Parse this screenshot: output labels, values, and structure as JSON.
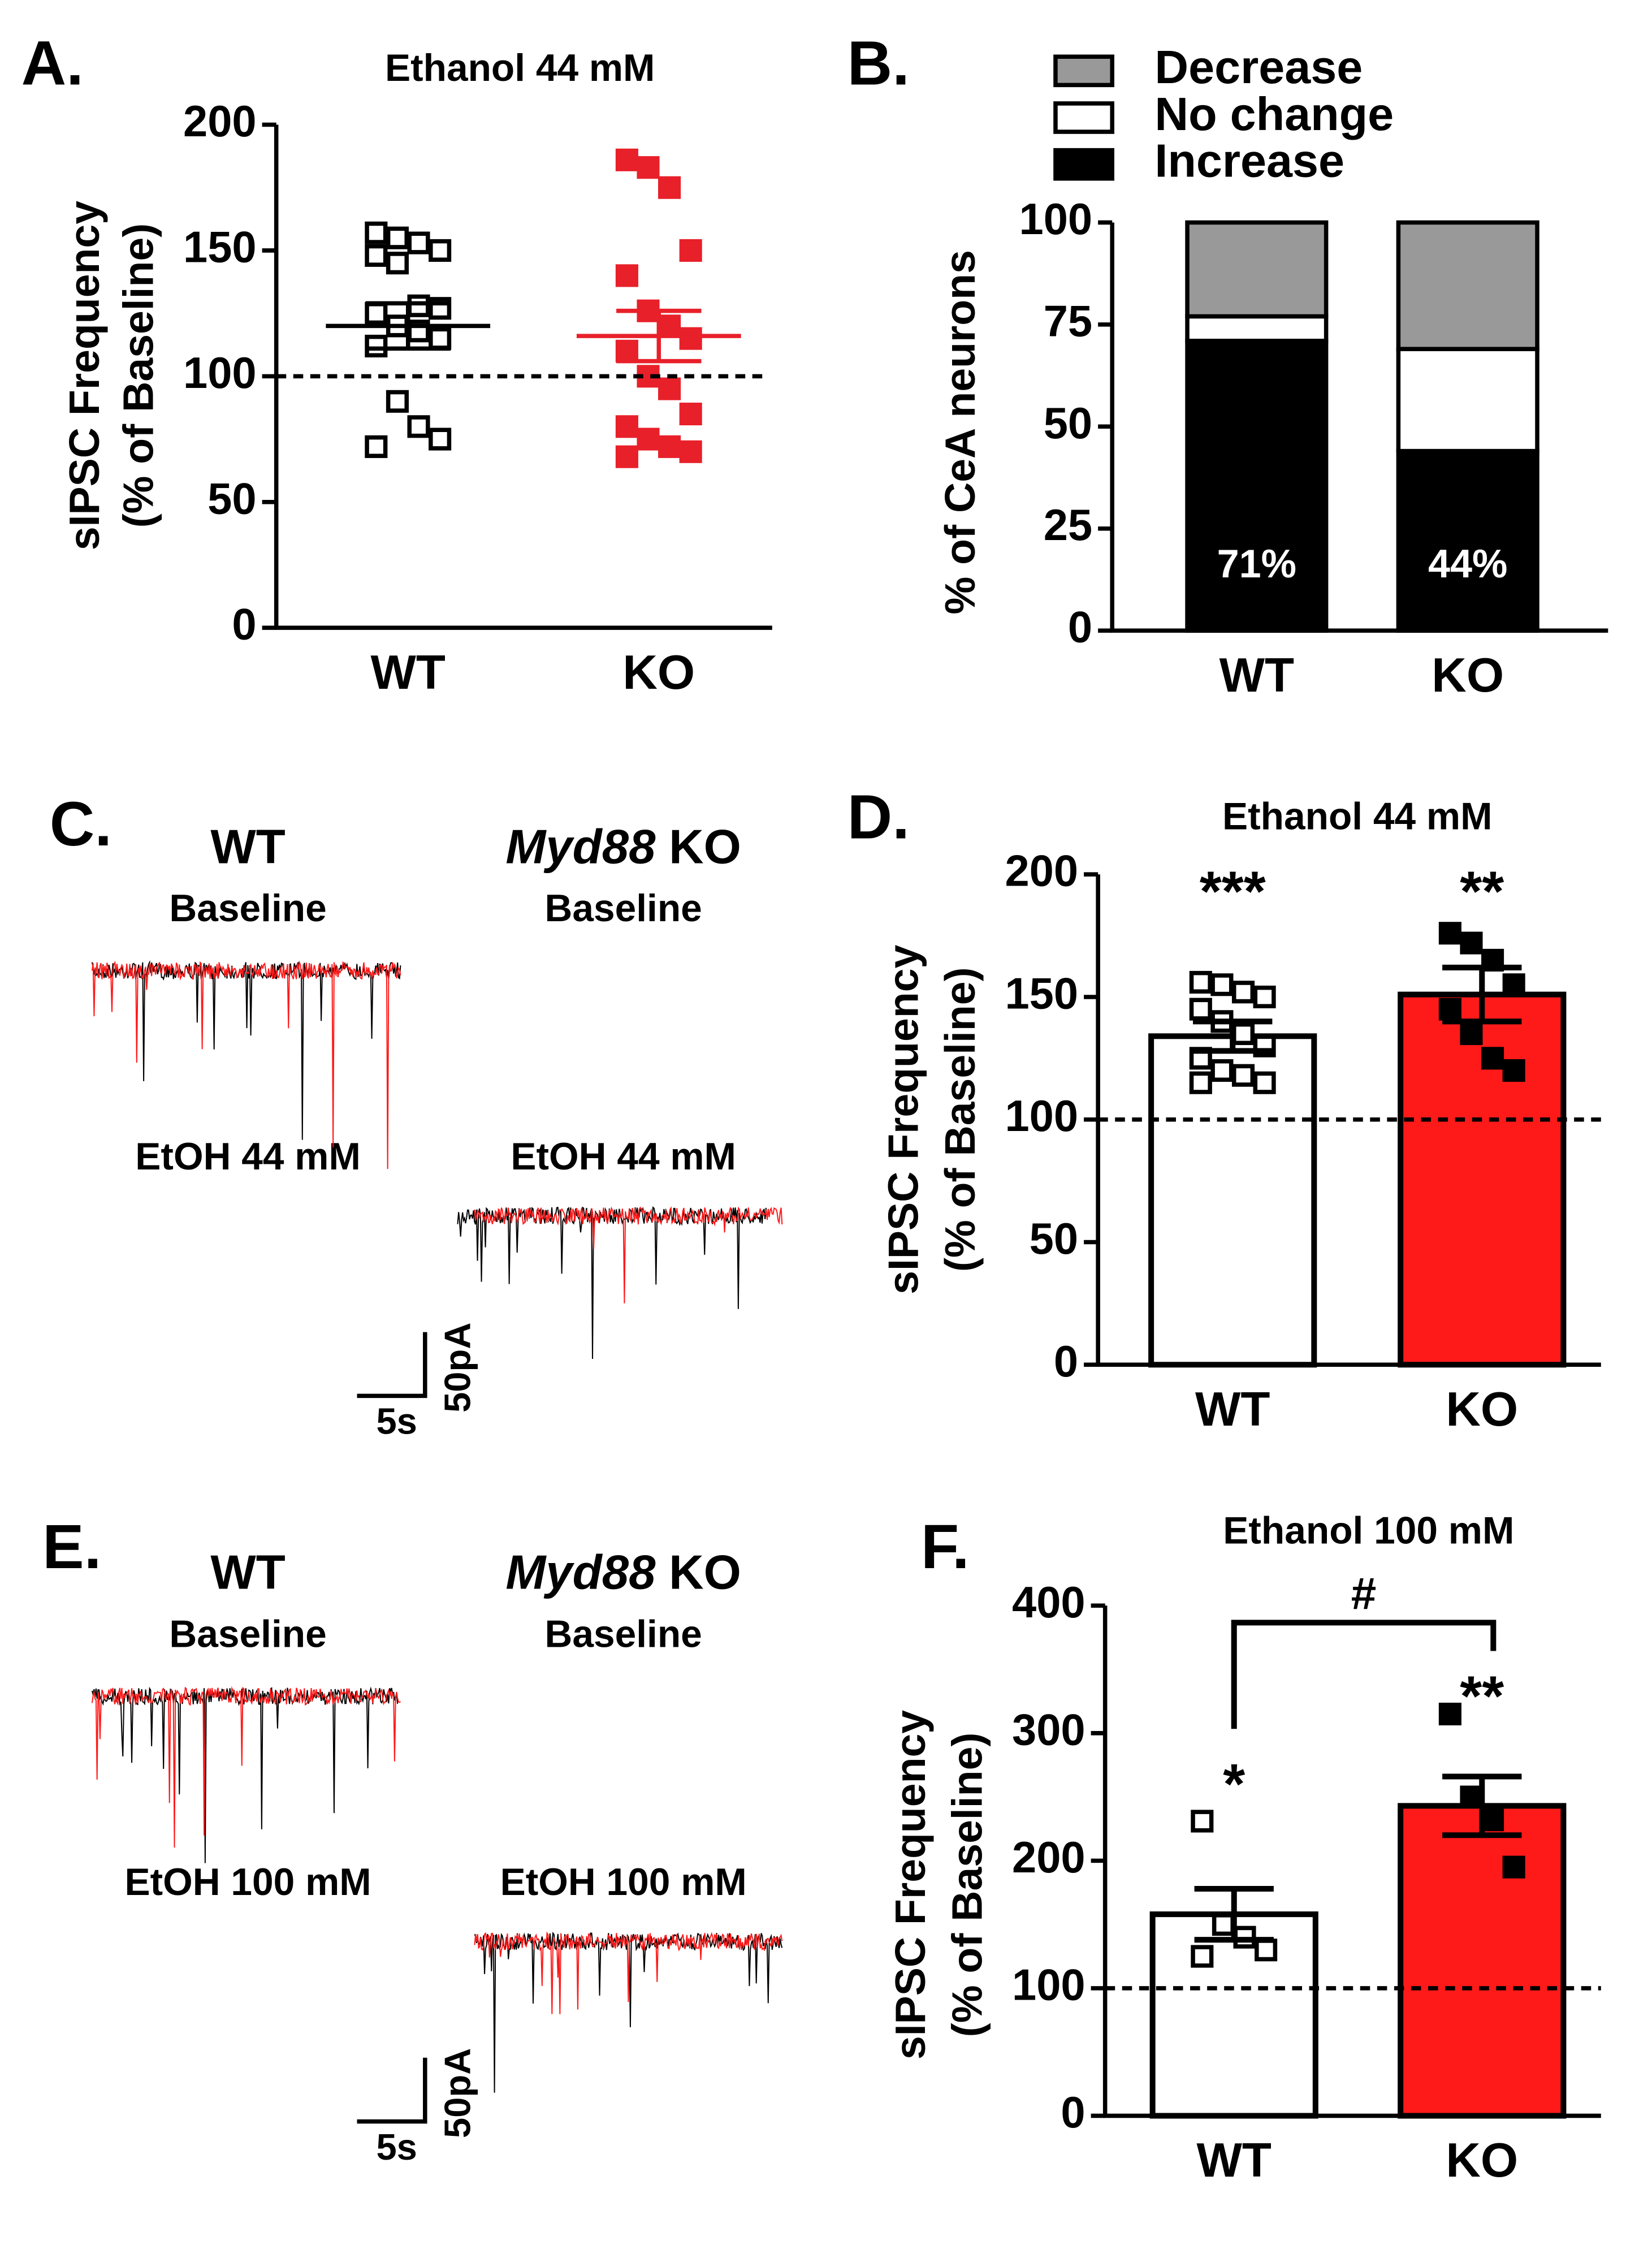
{
  "trace_panels": [
    {
      "panel": "C.",
      "groups": [
        {
          "title": "WT",
          "color": "#000000",
          "conditions": [
            "Baseline",
            "EtOH 44 mM"
          ]
        },
        {
          "title_italic": "Myd88",
          "title": "KO",
          "color": "#ff1a1a",
          "conditions": [
            "Baseline",
            "EtOH 44 mM"
          ]
        }
      ],
      "scale_time": "5s",
      "scale_current": "50pA"
    },
    {
      "panel": "E.",
      "groups": [
        {
          "title": "WT",
          "color": "#000000",
          "conditions": [
            "Baseline",
            "EtOH 100 mM"
          ]
        },
        {
          "title_italic": "Myd88",
          "title": "KO",
          "color": "#ff1a1a",
          "conditions": [
            "Baseline",
            "EtOH 100 mM"
          ]
        }
      ],
      "scale_time": "5s",
      "scale_current": "50pA"
    }
  ],
  "chart_data": [
    {
      "type": "scatter",
      "panel": "A.",
      "title": "Ethanol 44 mM",
      "ylabel": [
        "sIPSC Frequency",
        "(% of Baseline)"
      ],
      "categories": [
        "WT",
        "KO"
      ],
      "points": [
        [
          157,
          155,
          153,
          150,
          148,
          145,
          128,
          127,
          125,
          120,
          118,
          115,
          112,
          90,
          80,
          75,
          72
        ],
        [
          186,
          183,
          175,
          150,
          140,
          126,
          120,
          115,
          110,
          100,
          95,
          85,
          80,
          75,
          72,
          70,
          68
        ]
      ],
      "point_colors": [
        "#000000",
        "#e8202a"
      ],
      "point_filled": [
        false,
        true
      ],
      "means": [
        120,
        116
      ],
      "sem": [
        9,
        10
      ],
      "mean_colors": [
        "#000000",
        "#e8202a"
      ],
      "reference_line": 100,
      "ylim": [
        0,
        200
      ],
      "yticks": [
        0,
        50,
        100,
        150,
        200
      ]
    },
    {
      "type": "stacked_bar",
      "panel": "B.",
      "ylabel": "% of CeA neurons",
      "categories": [
        "WT",
        "KO"
      ],
      "series": [
        {
          "name": "Increase",
          "color": "#000000",
          "values": [
            71,
            44
          ],
          "value_labels": [
            "71%",
            "44%"
          ]
        },
        {
          "name": "No change",
          "color": "#ffffff",
          "values": [
            6,
            25
          ]
        },
        {
          "name": "Decrease",
          "color": "#999999",
          "values": [
            23,
            31
          ]
        }
      ],
      "ylim": [
        0,
        100
      ],
      "yticks": [
        0,
        25,
        50,
        75,
        100
      ]
    },
    {
      "type": "bar",
      "panel": "D.",
      "title": "Ethanol 44 mM",
      "ylabel": [
        "sIPSC Frequency",
        "(% of Baseline)"
      ],
      "categories": [
        "WT",
        "KO"
      ],
      "values": [
        134,
        151
      ],
      "errors": [
        6,
        11
      ],
      "colors": [
        "#ffffff",
        "#ff1a1a"
      ],
      "points": [
        [
          156,
          155,
          152,
          150,
          145,
          140,
          135,
          130,
          125,
          120,
          118,
          115,
          115
        ],
        [
          176,
          172,
          165,
          155,
          145,
          135,
          125,
          120
        ]
      ],
      "point_filled": [
        false,
        true
      ],
      "annotations": [
        "***",
        "**"
      ],
      "reference_line": 100,
      "ylim": [
        0,
        200
      ],
      "yticks": [
        0,
        50,
        100,
        150,
        200
      ]
    },
    {
      "type": "bar",
      "panel": "F.",
      "title": "Ethanol 100 mM",
      "ylabel": [
        "sIPSC Frequency",
        "(% of Baseline)"
      ],
      "categories": [
        "WT",
        "KO"
      ],
      "values": [
        158,
        243
      ],
      "errors": [
        20,
        23
      ],
      "colors": [
        "#ffffff",
        "#ff1a1a"
      ],
      "points": [
        [
          231,
          150,
          140,
          130,
          125
        ],
        [
          315,
          250,
          232,
          195
        ]
      ],
      "point_filled": [
        false,
        true
      ],
      "annotations": [
        "*",
        "**"
      ],
      "comparison": "#",
      "reference_line": 100,
      "ylim": [
        0,
        400
      ],
      "yticks": [
        0,
        100,
        200,
        300,
        400
      ]
    }
  ]
}
